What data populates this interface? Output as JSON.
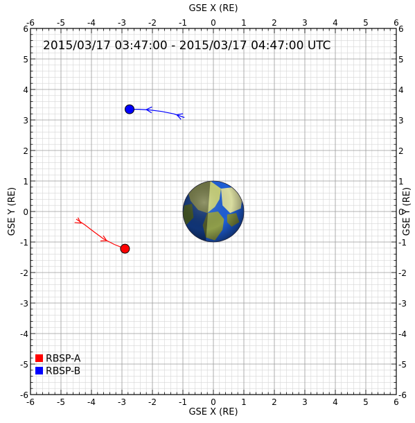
{
  "chart_data": {
    "type": "scatter",
    "title": "2015/03/17 03:47:00 - 2015/03/17 04:47:00 UTC",
    "xlabel": "GSE X (RE)",
    "ylabel": "GSE Y (RE)",
    "xlim": [
      -6,
      6
    ],
    "ylim": [
      -6,
      6
    ],
    "xticks": [
      -6,
      -5,
      -4,
      -3,
      -2,
      -1,
      0,
      1,
      2,
      3,
      4,
      5,
      6
    ],
    "yticks": [
      -6,
      -5,
      -4,
      -3,
      -2,
      -1,
      0,
      1,
      2,
      3,
      4,
      5,
      6
    ],
    "grid": true,
    "legend_placement": "bottom-left",
    "earth": {
      "x": 0,
      "y": 0,
      "radius": 1.0
    },
    "series": [
      {
        "name": "RBSP-A",
        "color": "#ff0000",
        "track": [
          {
            "x": -4.5,
            "y": -0.25
          },
          {
            "x": -4.2,
            "y": -0.45
          },
          {
            "x": -3.9,
            "y": -0.68
          },
          {
            "x": -3.6,
            "y": -0.9
          },
          {
            "x": -3.25,
            "y": -1.08
          },
          {
            "x": -2.9,
            "y": -1.22
          }
        ],
        "arrows": [
          {
            "x": -4.35,
            "y": -0.38
          },
          {
            "x": -3.5,
            "y": -0.96
          }
        ],
        "position": {
          "x": -2.9,
          "y": -1.22
        }
      },
      {
        "name": "RBSP-B",
        "color": "#0000ff",
        "track": [
          {
            "x": -0.95,
            "y": 3.08
          },
          {
            "x": -1.3,
            "y": 3.2
          },
          {
            "x": -1.7,
            "y": 3.28
          },
          {
            "x": -2.1,
            "y": 3.33
          },
          {
            "x": -2.45,
            "y": 3.35
          },
          {
            "x": -2.75,
            "y": 3.35
          }
        ],
        "arrows": [
          {
            "x": -1.2,
            "y": 3.17
          },
          {
            "x": -2.2,
            "y": 3.34
          }
        ],
        "position": {
          "x": -2.75,
          "y": 3.35
        }
      }
    ]
  }
}
